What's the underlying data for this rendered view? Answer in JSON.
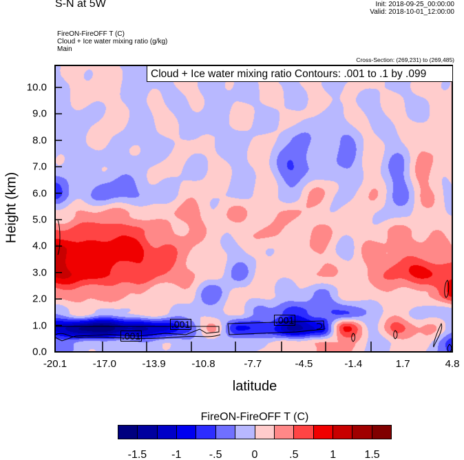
{
  "header": {
    "title": "S-N at 5W",
    "init": "Init: 2018-09-25_00:00:00",
    "valid": "Valid: 2018-10-01_12:00:00",
    "subtitles": [
      "FireON-FireOFF T   (C)",
      "Cloud + Ice water mixing ratio   (g/kg)",
      "Main"
    ],
    "cross_section": "Cross-Section: (269,231) to (269,485)"
  },
  "chart_data": {
    "type": "heatmap",
    "title": "S-N at 5W",
    "xlabel": "latitude",
    "ylabel": "Height (km)",
    "xlim": [
      -20.1,
      4.8
    ],
    "ylim": [
      0,
      10.83
    ],
    "xticks": [
      "-20.1",
      "-17.0",
      "-13.9",
      "-10.8",
      "-7.7",
      "-4.5",
      "-1.4",
      "1.7",
      "4.8"
    ],
    "xtick_values": [
      -20.1,
      -17.0,
      -13.9,
      -10.8,
      -7.7,
      -4.5,
      -1.4,
      1.7,
      4.8
    ],
    "yticks": [
      "0.0",
      "1.0",
      "2.0",
      "3.0",
      "4.0",
      "5.0",
      "6.0",
      "7.0",
      "8.0",
      "9.0",
      "10.0"
    ],
    "ytick_values": [
      0,
      1,
      2,
      3,
      4,
      5,
      6,
      7,
      8,
      9,
      10
    ],
    "contour_legend": "Cloud + Ice water mixing ratio Contours: .001 to .1 by .099",
    "contour_labels": [
      ".001",
      ".001",
      ".001"
    ],
    "grid_x": [
      -20.1,
      -18.4,
      -16.8,
      -15.1,
      -13.5,
      -11.8,
      -10.2,
      -8.5,
      -6.9,
      -5.2,
      -3.6,
      -1.9,
      -0.3,
      1.4,
      3.0,
      4.8
    ],
    "grid_heights": [
      0.3,
      0.9,
      1.5,
      2.2,
      3.0,
      3.8,
      4.5,
      5.2,
      6.0,
      7.0,
      8.0,
      9.0,
      10.0
    ],
    "field": [
      [
        -0.3,
        -0.1,
        -0.1,
        -0.1,
        -0.1,
        -0.1,
        -0.1,
        -0.1,
        0.1,
        0.1,
        0.3,
        0.3,
        -0.1,
        0.1,
        0.1,
        -0.6
      ],
      [
        -1.1,
        -1.6,
        -1.6,
        -1.3,
        -1.1,
        -0.6,
        0.4,
        -0.9,
        -0.6,
        -1.3,
        -1.1,
        0.9,
        -0.1,
        0.6,
        0.3,
        -0.1
      ],
      [
        -0.1,
        0.1,
        -0.1,
        0.1,
        0.1,
        -0.1,
        -0.1,
        0.1,
        -0.4,
        -0.6,
        -0.4,
        -0.6,
        -0.1,
        0.1,
        -0.1,
        -0.1
      ],
      [
        0.3,
        0.4,
        0.3,
        0.3,
        0.1,
        0.1,
        -0.4,
        0.1,
        0.1,
        -0.1,
        -0.3,
        0.1,
        0.1,
        0.3,
        0.1,
        0.9
      ],
      [
        1.1,
        0.9,
        0.8,
        0.6,
        0.6,
        0.3,
        0.1,
        -0.3,
        0.1,
        0.1,
        0.3,
        0.1,
        0.3,
        0.6,
        0.9,
        0.6
      ],
      [
        1.1,
        0.9,
        0.9,
        0.9,
        0.6,
        0.3,
        0.1,
        -0.1,
        0.1,
        0.1,
        0.3,
        -0.1,
        0.3,
        0.4,
        0.3,
        0.3
      ],
      [
        0.6,
        0.6,
        0.8,
        0.6,
        0.3,
        0.3,
        0.1,
        0.1,
        0.3,
        0.1,
        0.3,
        0.1,
        0.1,
        0.3,
        0.3,
        0.1
      ],
      [
        0.1,
        0.3,
        0.3,
        0.3,
        0.1,
        0.4,
        0.1,
        0.3,
        0.1,
        0.3,
        0.1,
        0.1,
        0.1,
        -0.1,
        0.1,
        0.1
      ],
      [
        -0.6,
        -0.1,
        -0.4,
        -0.3,
        -0.1,
        0.1,
        0.1,
        -0.1,
        0.1,
        -0.1,
        0.3,
        -0.1,
        0.3,
        -0.4,
        0.3,
        -0.1
      ],
      [
        -0.1,
        -0.1,
        -0.1,
        -0.1,
        0.1,
        -0.1,
        0.1,
        -0.1,
        0.1,
        -0.6,
        -0.1,
        -0.3,
        0.1,
        -0.3,
        0.3,
        0.1
      ],
      [
        -0.1,
        -0.1,
        0.1,
        -0.1,
        -0.1,
        0.1,
        -0.1,
        -0.1,
        0.1,
        -0.3,
        -0.1,
        -0.3,
        0.1,
        -0.1,
        0.3,
        0.1
      ],
      [
        -0.1,
        -0.1,
        0.1,
        -0.1,
        0.1,
        -0.1,
        -0.1,
        0.1,
        -0.1,
        0.1,
        -0.1,
        0.1,
        -0.1,
        0.1,
        -0.1,
        0.1
      ],
      [
        -0.1,
        0.1,
        0.1,
        -0.1,
        -0.1,
        0.1,
        -0.1,
        -0.1,
        0.1,
        -0.1,
        0.1,
        -0.1,
        0.1,
        -0.1,
        0.1,
        0.1
      ]
    ],
    "colorbar": {
      "title": "FireON-FireOFF T  (C)",
      "levels_min": -1.75,
      "level_step": 0.25,
      "colors": [
        "#00007f",
        "#00009f",
        "#0000c8",
        "#0000f0",
        "#2d2dff",
        "#7070ff",
        "#b8b8ff",
        "#ffcccc",
        "#ff8888",
        "#ff4444",
        "#f00000",
        "#c80000",
        "#a00000",
        "#800000"
      ],
      "labels": [
        "-1.5",
        "-1",
        "-.5",
        "0",
        ".5",
        "1",
        "1.5"
      ],
      "label_values": [
        -1.5,
        -1,
        -0.5,
        0,
        0.5,
        1,
        1.5
      ]
    }
  }
}
